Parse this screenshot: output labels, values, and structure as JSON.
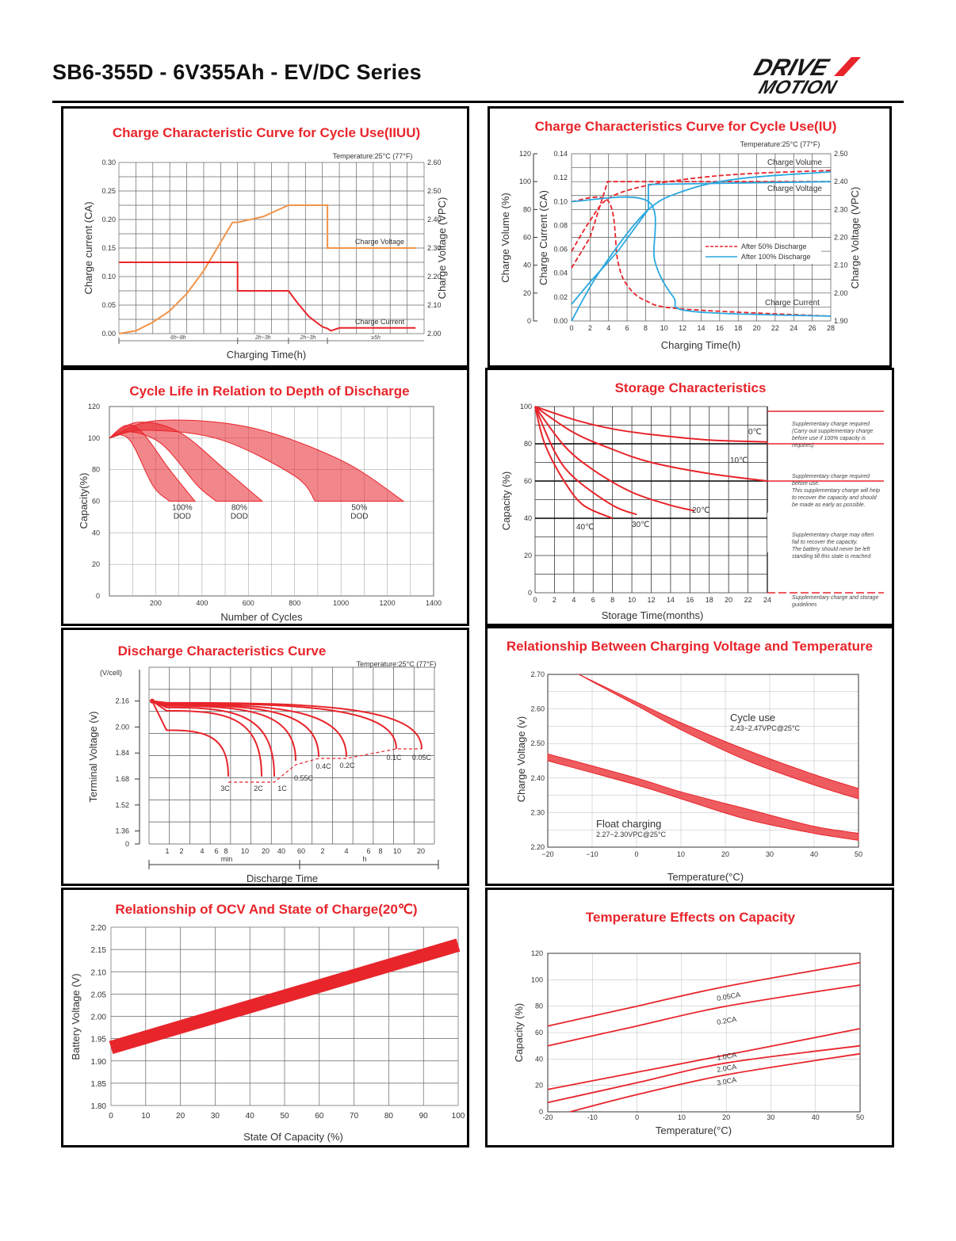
{
  "header": {
    "title": "SB6-355D - 6V355Ah - EV/DC Series",
    "logo_line1": "DRIVE",
    "logo_line2": "MOTION"
  },
  "colors": {
    "red": "#e8252b",
    "orange": "#f0944a",
    "blue": "#29a8e0",
    "grid": "#555555"
  },
  "chart_data": [
    {
      "id": "iiuu",
      "type": "line",
      "title": "Charge Characteristic Curve for Cycle Use(IIUU)",
      "subtitle": "Temperature:25°C (77°F)",
      "xlabel": "Charging Time(h)",
      "ylabel": "Charge current (CA)",
      "y2label": "Charge Voltage (VPC)",
      "ylim": [
        0,
        0.3
      ],
      "y2lim": [
        2.0,
        2.6
      ],
      "yticks": [
        "0.00",
        "0.05",
        "0.10",
        "0.15",
        "0.20",
        "0.25",
        "0.30"
      ],
      "y2ticks": [
        "2.00",
        "2.10",
        "2.20",
        "2.30",
        "2.40",
        "2.50",
        "2.60"
      ],
      "segments": [
        "6h~8h",
        "2h~3h",
        "2h~3h",
        "≥5h"
      ],
      "series": [
        {
          "name": "Charge Voltage",
          "axis": "right",
          "points": [
            [
              0,
              2.0
            ],
            [
              1,
              2.01
            ],
            [
              2,
              2.04
            ],
            [
              3,
              2.08
            ],
            [
              4,
              2.14
            ],
            [
              5,
              2.22
            ],
            [
              6,
              2.32
            ],
            [
              6.7,
              2.39
            ],
            [
              7,
              2.39
            ],
            [
              8.5,
              2.41
            ],
            [
              10,
              2.45
            ],
            [
              12.3,
              2.45
            ],
            [
              12.3,
              2.3
            ],
            [
              17.5,
              2.3
            ]
          ]
        },
        {
          "name": "Charge Current",
          "axis": "left",
          "points": [
            [
              0,
              0.125
            ],
            [
              7,
              0.125
            ],
            [
              7,
              0.075
            ],
            [
              10,
              0.075
            ],
            [
              10.5,
              0.055
            ],
            [
              11.2,
              0.03
            ],
            [
              12,
              0.012
            ],
            [
              12.3,
              0.009
            ],
            [
              12.5,
              0.005
            ],
            [
              13,
              0.01
            ],
            [
              17.5,
              0.01
            ]
          ]
        }
      ]
    },
    {
      "id": "iu",
      "type": "line",
      "title": "Charge Characteristics Curve for Cycle Use(IU)",
      "subtitle": "Temperature:25°C (77°F)",
      "xlabel": "Charging Time(h)",
      "ylabel1": "Charge Volume (%)",
      "ylabel2": "Charge Current (CA)",
      "y2label": "Charge Voltage (VPC)",
      "xlim": [
        0,
        28
      ],
      "xticks": [
        "0",
        "2",
        "4",
        "6",
        "8",
        "10",
        "12",
        "14",
        "16",
        "18",
        "20",
        "22",
        "24",
        "26",
        "28"
      ],
      "volume_ticks": [
        "0",
        "20",
        "40",
        "60",
        "80",
        "100",
        "120"
      ],
      "current_ticks": [
        "0.00",
        "0.02",
        "0.04",
        "0.06",
        "0.08",
        "0.10",
        "0.12",
        "0.14"
      ],
      "voltage_ticks": [
        "1.90",
        "2.00",
        "2.10",
        "2.20",
        "2.30",
        "2.40",
        "2.50"
      ],
      "labels": [
        "Charge Volume",
        "Charge Voltage",
        "Charge Current"
      ],
      "legend": [
        "After 50% Discharge",
        "After 100% Discharge"
      ],
      "series": [
        {
          "name": "Charge Volume",
          "variant": "After 50% Discharge",
          "points": [
            [
              0,
              50
            ],
            [
              2,
              72
            ],
            [
              4,
              88
            ],
            [
              8,
              97
            ],
            [
              14,
              103
            ],
            [
              20,
              106
            ],
            [
              28,
              108
            ]
          ]
        },
        {
          "name": "Charge Voltage",
          "variant": "After 50% Discharge",
          "points": [
            [
              0,
              2.09
            ],
            [
              2,
              2.2
            ],
            [
              3.9,
              2.4
            ],
            [
              28,
              2.4
            ]
          ]
        },
        {
          "name": "Charge Current",
          "variant": "After 50% Discharge",
          "points": [
            [
              0,
              0.1
            ],
            [
              4,
              0.1
            ],
            [
              5,
              0.05
            ],
            [
              6,
              0.03
            ],
            [
              8,
              0.017
            ],
            [
              12,
              0.01
            ],
            [
              28,
              0.004
            ]
          ]
        },
        {
          "name": "Charge Volume",
          "variant": "After 100% Discharge",
          "points": [
            [
              0,
              0
            ],
            [
              3,
              35
            ],
            [
              8,
              78
            ],
            [
              12,
              93
            ],
            [
              18,
              102
            ],
            [
              28,
              107
            ]
          ]
        },
        {
          "name": "Charge Voltage",
          "variant": "After 100% Discharge",
          "points": [
            [
              0,
              1.96
            ],
            [
              2,
              2.04
            ],
            [
              5,
              2.15
            ],
            [
              8.3,
              2.3
            ],
            [
              8.3,
              2.39
            ],
            [
              28,
              2.4
            ]
          ]
        },
        {
          "name": "Charge Current",
          "variant": "After 100% Discharge",
          "points": [
            [
              0,
              0.1
            ],
            [
              8.3,
              0.1
            ],
            [
              9,
              0.05
            ],
            [
              11,
              0.02
            ],
            [
              13,
              0.008
            ],
            [
              28,
              0.004
            ]
          ]
        }
      ]
    },
    {
      "id": "cyclelife",
      "type": "line",
      "title": "Cycle Life in Relation to Depth of Discharge",
      "xlabel": "Number of Cycles",
      "ylabel": "Capacity(%)",
      "xlim": [
        0,
        1400
      ],
      "ylim": [
        0,
        120
      ],
      "xticks": [
        "200",
        "400",
        "600",
        "800",
        "1000",
        "1200",
        "1400"
      ],
      "yticks": [
        "0",
        "20",
        "40",
        "60",
        "80",
        "100",
        "120"
      ],
      "series": [
        {
          "name": "100% DOD",
          "points": [
            [
              0,
              100
            ],
            [
              70,
              108
            ],
            [
              140,
              104
            ],
            [
              260,
              80
            ],
            [
              370,
              60
            ]
          ]
        },
        {
          "name": "80% DOD",
          "points": [
            [
              0,
              100
            ],
            [
              120,
              110
            ],
            [
              300,
              104
            ],
            [
              500,
              80
            ],
            [
              660,
              60
            ]
          ]
        },
        {
          "name": "50% DOD",
          "points": [
            [
              0,
              100
            ],
            [
              200,
              111
            ],
            [
              600,
              107
            ],
            [
              1000,
              86
            ],
            [
              1270,
              60
            ]
          ]
        }
      ]
    },
    {
      "id": "storage",
      "type": "line",
      "title": "Storage Characteristics",
      "xlabel": "Storage Time(months)",
      "ylabel": "Capacity (%)",
      "xlim": [
        0,
        24
      ],
      "ylim": [
        0,
        100
      ],
      "xticks": [
        "0",
        "2",
        "4",
        "6",
        "8",
        "10",
        "12",
        "14",
        "16",
        "18",
        "20",
        "22",
        "24"
      ],
      "yticks": [
        "0",
        "20",
        "40",
        "60",
        "80",
        "100"
      ],
      "series": [
        {
          "name": "0℃",
          "points": [
            [
              0,
              100
            ],
            [
              4,
              93
            ],
            [
              8,
              88
            ],
            [
              12,
              85
            ],
            [
              18,
              82
            ],
            [
              24,
              81
            ]
          ]
        },
        {
          "name": "10℃",
          "points": [
            [
              0,
              100
            ],
            [
              4,
              86
            ],
            [
              8,
              77
            ],
            [
              12,
              70
            ],
            [
              18,
              64
            ],
            [
              24,
              60
            ]
          ]
        },
        {
          "name": "20℃",
          "points": [
            [
              0,
              100
            ],
            [
              3,
              79
            ],
            [
              6,
              66
            ],
            [
              10,
              54
            ],
            [
              14,
              47
            ],
            [
              16.5,
              44
            ]
          ]
        },
        {
          "name": "30℃",
          "points": [
            [
              0,
              100
            ],
            [
              2,
              76
            ],
            [
              4,
              62
            ],
            [
              8,
              47
            ],
            [
              10.5,
              42
            ]
          ]
        },
        {
          "name": "40℃",
          "points": [
            [
              0,
              100
            ],
            [
              1,
              80
            ],
            [
              3,
              60
            ],
            [
              5,
              47
            ],
            [
              8,
              40
            ]
          ]
        }
      ],
      "notes": [
        [
          "Supplementary charge required",
          "(Carry out supplementary charge",
          "before use if 100% capacity is",
          "requires)"
        ],
        [
          "Supplementary charge required",
          "before use.",
          "This supplementary charge will help",
          "to recover the capacity and should",
          "be made  as early as possible."
        ],
        [
          "Supplementary charge may often",
          "fail to recover the capacity.",
          "The battery should never be left",
          "standing till this state is reached"
        ],
        [
          "Supplementary charge and storage",
          "guidelines"
        ]
      ]
    },
    {
      "id": "discharge",
      "type": "line",
      "title": "Discharge Characteristics Curve",
      "subtitle": "Temperature:25°C (77°F)",
      "xlabel": "Discharge  Time",
      "ylabel": "Terminal  Voltage  (v)",
      "yunit": "(V/cell)",
      "yticks": [
        "0",
        "1.36",
        "1.52",
        "1.68",
        "1.84",
        "2.00",
        "2.16"
      ],
      "xticks": [
        "1",
        "2",
        "4",
        "6",
        "8",
        "10",
        "20",
        "40",
        "60",
        "2",
        "4",
        "6",
        "8",
        "10",
        "20"
      ],
      "xgroups": [
        "min",
        "h"
      ],
      "series": [
        {
          "name": "3C",
          "end_voltage": 1.68
        },
        {
          "name": "2C",
          "end_voltage": 1.68
        },
        {
          "name": "1C",
          "end_voltage": 1.68
        },
        {
          "name": "0.55C",
          "end_voltage": 1.7
        },
        {
          "name": "0.4C",
          "end_voltage": 1.75
        },
        {
          "name": "0.2C",
          "end_voltage": 1.75
        },
        {
          "name": "0.1C",
          "end_voltage": 1.8
        },
        {
          "name": "0.05C",
          "end_voltage": 1.8
        }
      ]
    },
    {
      "id": "voltemp",
      "type": "line",
      "title": "Relationship Between Charging Voltage and Temperature",
      "xlabel": "Temperature(°C)",
      "ylabel": "Charge Voltage  (v)",
      "xlim": [
        -20,
        50
      ],
      "ylim": [
        2.2,
        2.7
      ],
      "xticks": [
        "−20",
        "−10",
        "0",
        "10",
        "20",
        "30",
        "40",
        "50"
      ],
      "yticks": [
        "2.20",
        "2.30",
        "2.40",
        "2.50",
        "2.60",
        "2.70"
      ],
      "series": [
        {
          "name": "Cycle use",
          "note": "2.43~2.47VPC@25°C",
          "upper": [
            [
              -13,
              2.7
            ],
            [
              0,
              2.62
            ],
            [
              10,
              2.56
            ],
            [
              25,
              2.48
            ],
            [
              40,
              2.41
            ],
            [
              50,
              2.37
            ]
          ],
          "lower": [
            [
              -13,
              2.7
            ],
            [
              0,
              2.61
            ],
            [
              10,
              2.54
            ],
            [
              25,
              2.45
            ],
            [
              40,
              2.38
            ],
            [
              50,
              2.34
            ]
          ]
        },
        {
          "name": "Float charging",
          "note": "2.27~2.30VPC@25°C",
          "upper": [
            [
              -20,
              2.47
            ],
            [
              0,
              2.4
            ],
            [
              10,
              2.36
            ],
            [
              25,
              2.31
            ],
            [
              40,
              2.26
            ],
            [
              50,
              2.24
            ]
          ],
          "lower": [
            [
              -20,
              2.45
            ],
            [
              0,
              2.38
            ],
            [
              10,
              2.34
            ],
            [
              25,
              2.28
            ],
            [
              40,
              2.24
            ],
            [
              50,
              2.22
            ]
          ]
        }
      ]
    },
    {
      "id": "ocv",
      "type": "line",
      "title": "Relationship of OCV And State of Charge(20℃)",
      "xlabel": "State Of Capacity (%)",
      "ylabel": "Battery Voltage (V)",
      "xlim": [
        0,
        100
      ],
      "ylim": [
        1.8,
        2.2
      ],
      "xticks": [
        "0",
        "10",
        "20",
        "30",
        "40",
        "50",
        "60",
        "70",
        "80",
        "90",
        "100"
      ],
      "yticks": [
        "1.80",
        "1.85",
        "1.90",
        "1.95",
        "2.00",
        "2.05",
        "2.10",
        "2.15",
        "2.20"
      ],
      "series": [
        {
          "name": "OCV",
          "points": [
            [
              0,
              1.93
            ],
            [
              100,
              2.16
            ]
          ]
        }
      ]
    },
    {
      "id": "tempcap",
      "type": "line",
      "title": "Temperature Effects on Capacity",
      "xlabel": "Temperature(°C)",
      "ylabel": "Capacity (%)",
      "xlim": [
        -20,
        50
      ],
      "ylim": [
        0,
        120
      ],
      "xticks": [
        "-20",
        "-10",
        "0",
        "10",
        "20",
        "30",
        "40",
        "50"
      ],
      "yticks": [
        "0",
        "20",
        "40",
        "60",
        "80",
        "100",
        "120"
      ],
      "series": [
        {
          "name": "0.05CA",
          "points": [
            [
              -20,
              65
            ],
            [
              0,
              80
            ],
            [
              20,
              95
            ],
            [
              50,
              113
            ]
          ]
        },
        {
          "name": "0.2CA",
          "points": [
            [
              -20,
              50
            ],
            [
              0,
              65
            ],
            [
              20,
              80
            ],
            [
              50,
              96
            ]
          ]
        },
        {
          "name": "1.0CA",
          "points": [
            [
              -20,
              17
            ],
            [
              0,
              30
            ],
            [
              20,
              43
            ],
            [
              50,
              63
            ]
          ]
        },
        {
          "name": "2.0CA",
          "points": [
            [
              -20,
              7
            ],
            [
              0,
              22
            ],
            [
              20,
              37
            ],
            [
              50,
              50
            ]
          ]
        },
        {
          "name": "3.0CA",
          "points": [
            [
              -15,
              0
            ],
            [
              0,
              13
            ],
            [
              20,
              28
            ],
            [
              50,
              44
            ]
          ]
        }
      ]
    }
  ]
}
